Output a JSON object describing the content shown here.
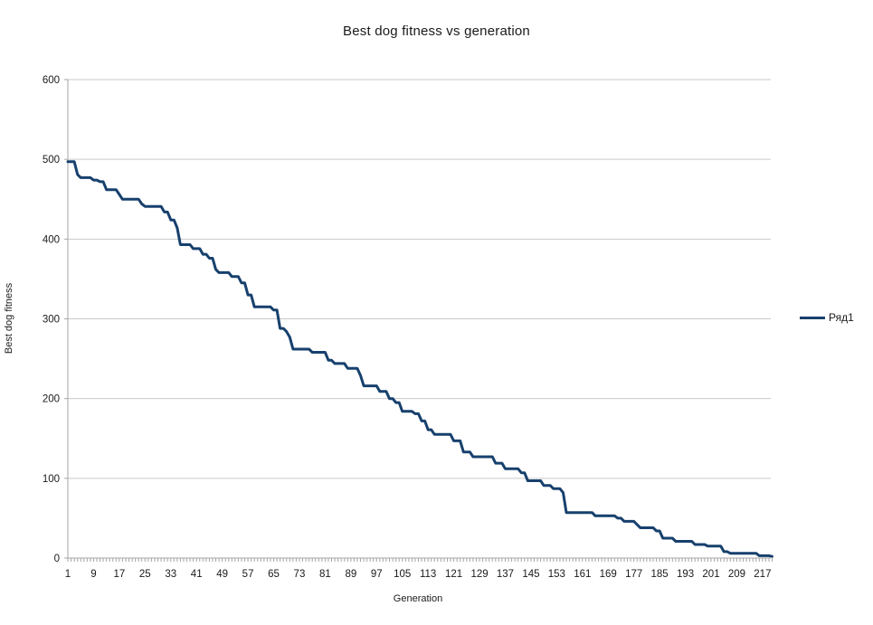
{
  "chart_data": {
    "type": "line",
    "title": "Best dog fitness vs generation",
    "xlabel": "Generation",
    "ylabel": "Best dog fitness",
    "legend": [
      "Ряд1"
    ],
    "legend_position": "right",
    "grid": true,
    "ylim": [
      0,
      600
    ],
    "y_tick_step": 100,
    "y_tick_labels": [
      "0",
      "100",
      "200",
      "300",
      "400",
      "500",
      "600"
    ],
    "x_range": [
      1,
      220
    ],
    "x_tick_labels": [
      "1",
      "9",
      "17",
      "25",
      "33",
      "41",
      "49",
      "57",
      "65",
      "73",
      "81",
      "89",
      "97",
      "105",
      "113",
      "121",
      "129",
      "137",
      "145",
      "153",
      "161",
      "169",
      "177",
      "185",
      "193",
      "201",
      "209",
      "217"
    ],
    "x_tick_start": 1,
    "x_tick_interval": 8,
    "colors": {
      "series_line": "#17406d",
      "gridline": "#c9c9c9",
      "axis": "#a6a6a6",
      "text": "#1a1a1a"
    },
    "series": [
      {
        "name": "Ряд1",
        "description": "Best dog fitness per generation; value holds from each breakpoint generation until the next (stepped decline).",
        "breakpoints": [
          [
            1,
            497
          ],
          [
            4,
            481
          ],
          [
            5,
            477
          ],
          [
            9,
            474
          ],
          [
            11,
            472
          ],
          [
            13,
            462
          ],
          [
            17,
            456
          ],
          [
            18,
            450
          ],
          [
            24,
            444
          ],
          [
            25,
            441
          ],
          [
            31,
            434
          ],
          [
            33,
            424
          ],
          [
            35,
            414
          ],
          [
            36,
            393
          ],
          [
            40,
            388
          ],
          [
            43,
            381
          ],
          [
            45,
            376
          ],
          [
            47,
            362
          ],
          [
            48,
            358
          ],
          [
            52,
            353
          ],
          [
            55,
            345
          ],
          [
            57,
            330
          ],
          [
            59,
            315
          ],
          [
            65,
            311
          ],
          [
            67,
            288
          ],
          [
            69,
            284
          ],
          [
            70,
            277
          ],
          [
            71,
            262
          ],
          [
            77,
            258
          ],
          [
            82,
            248
          ],
          [
            84,
            244
          ],
          [
            88,
            238
          ],
          [
            92,
            229
          ],
          [
            93,
            216
          ],
          [
            98,
            209
          ],
          [
            101,
            200
          ],
          [
            103,
            195
          ],
          [
            105,
            184
          ],
          [
            109,
            181
          ],
          [
            111,
            172
          ],
          [
            113,
            161
          ],
          [
            115,
            155
          ],
          [
            121,
            147
          ],
          [
            124,
            133
          ],
          [
            127,
            127
          ],
          [
            134,
            119
          ],
          [
            137,
            112
          ],
          [
            142,
            107
          ],
          [
            144,
            97
          ],
          [
            149,
            91
          ],
          [
            152,
            87
          ],
          [
            155,
            82
          ],
          [
            156,
            57
          ],
          [
            165,
            53
          ],
          [
            172,
            50
          ],
          [
            174,
            46
          ],
          [
            178,
            42
          ],
          [
            179,
            38
          ],
          [
            184,
            34
          ],
          [
            186,
            25
          ],
          [
            190,
            21
          ],
          [
            196,
            17
          ],
          [
            200,
            15
          ],
          [
            205,
            8
          ],
          [
            207,
            6
          ],
          [
            216,
            3
          ],
          [
            220,
            2
          ]
        ]
      }
    ]
  }
}
